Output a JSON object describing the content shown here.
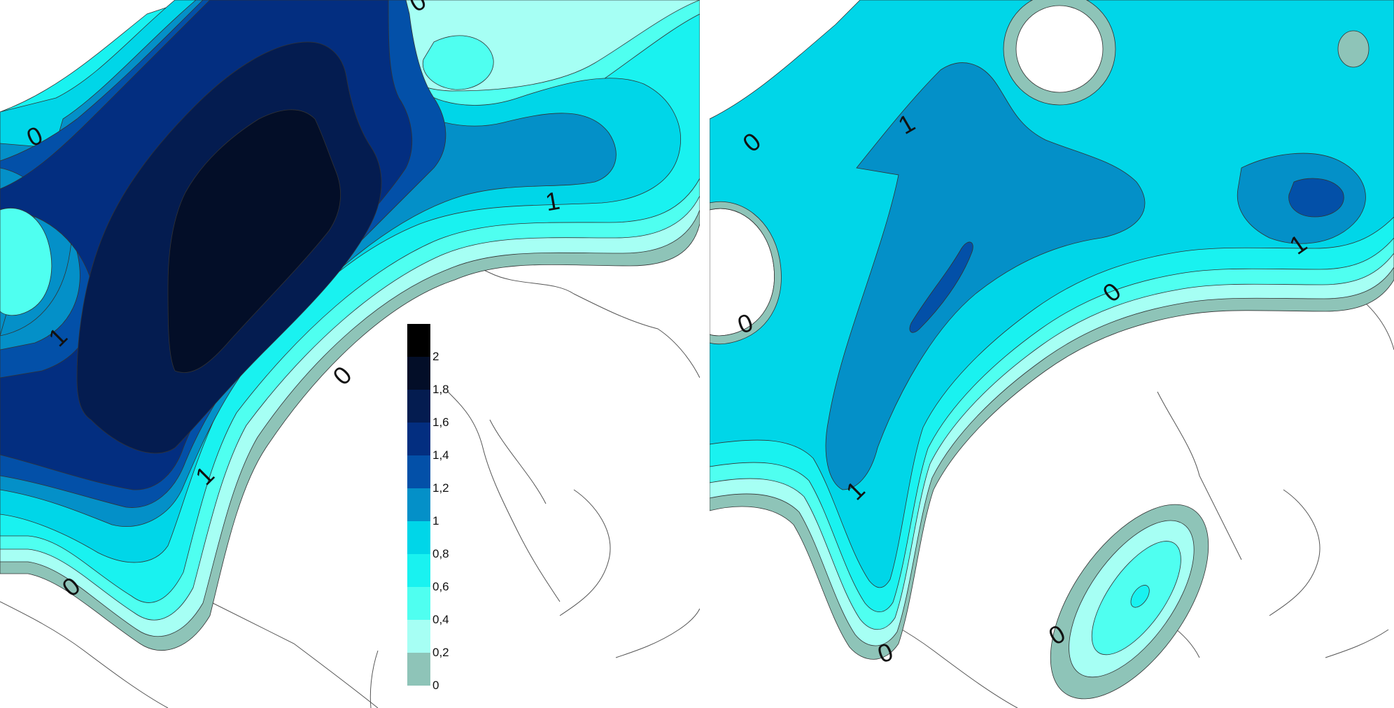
{
  "colors": {
    "band_0_0.2": "#8ec4b8",
    "band_0.2_0.4": "#a6fff4",
    "band_0.4_0.6": "#4ffff0",
    "band_0.6_0.8": "#19f2f0",
    "band_0.8_1": "#00d6e8",
    "band_1_1.2": "#0490c8",
    "band_1.2_1.4": "#0350a8",
    "band_1.4_1.6": "#032e80",
    "band_1.6_1.8": "#041c50",
    "band_1.8_2": "#030e28",
    "band_2_plus": "#000000",
    "coastline": "#444444"
  },
  "legend": {
    "ticks": [
      "2",
      "1,8",
      "1,6",
      "1,4",
      "1,2",
      "1",
      "0,8",
      "0,6",
      "0,4",
      "0,2",
      "0"
    ]
  },
  "left_map": {
    "contour_labels": [
      "0",
      "0",
      "1",
      "1",
      "0",
      "1",
      "0"
    ]
  },
  "right_map": {
    "contour_labels": [
      "0",
      "1",
      "0",
      "0",
      "1",
      "1",
      "0",
      "0"
    ]
  }
}
